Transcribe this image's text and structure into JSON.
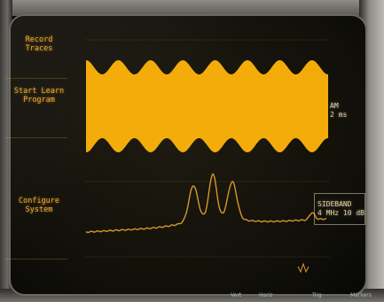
{
  "softkeys": [
    {
      "label": "Record\nTraces"
    },
    {
      "label": "Start Learn\nProgram"
    },
    {
      "label": "Configure\nSystem"
    }
  ],
  "annotations": {
    "am_label": "AM",
    "am_value": "2 ms",
    "sideband_line1": "SIDEBAND",
    "sideband_line2": "4 MHz  10 dB"
  },
  "corner_mark": "ĐV",
  "footer": {
    "left": "",
    "mid1": "Vert",
    "mid2": "Horiz",
    "right1": "Trig",
    "right2": "Markers"
  },
  "colors": {
    "trace": "#ffb40a",
    "spectrum": "#d7962c",
    "menu_text": "#e8a93a"
  }
}
